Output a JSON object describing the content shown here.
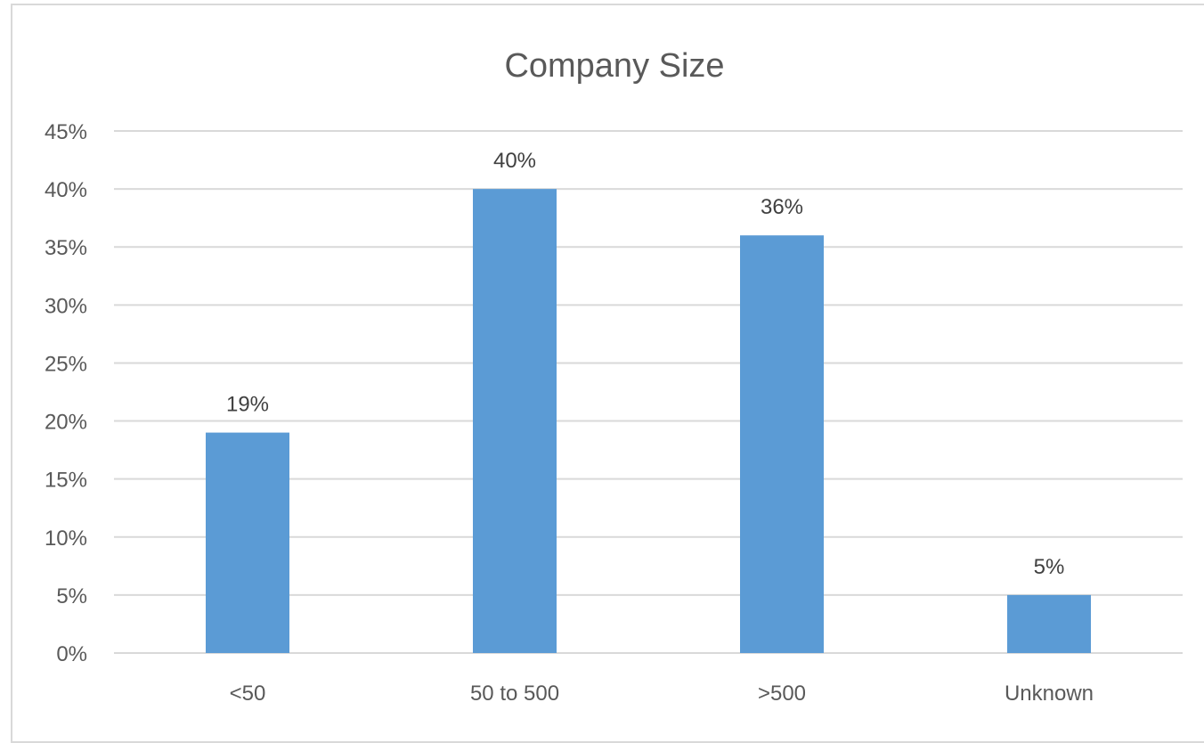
{
  "chart_data": {
    "type": "bar",
    "title": "Company Size",
    "categories": [
      "<50",
      "50 to 500",
      ">500",
      "Unknown"
    ],
    "values": [
      19,
      40,
      36,
      5
    ],
    "value_labels": [
      "19%",
      "40%",
      "36%",
      "5%"
    ],
    "ylim": [
      0,
      45
    ],
    "yticks": [
      0,
      5,
      10,
      15,
      20,
      25,
      30,
      35,
      40,
      45
    ],
    "ytick_labels": [
      "0%",
      "5%",
      "10%",
      "15%",
      "20%",
      "25%",
      "30%",
      "35%",
      "40%",
      "45%"
    ],
    "grid": true,
    "legend": "none",
    "bar_color": "#5b9bd5",
    "grid_color": "#d9d9d9"
  }
}
